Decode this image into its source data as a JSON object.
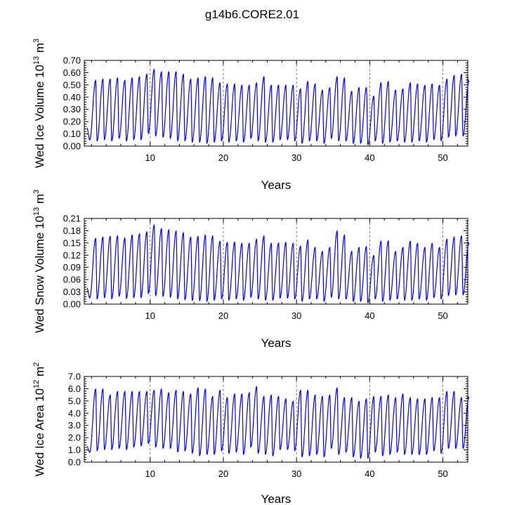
{
  "title": "g14b6.CORE2.01",
  "colors": {
    "line": "#0000ff",
    "axis": "#000000",
    "grid": "#555555"
  },
  "chart_data": [
    {
      "type": "line",
      "id": "ice-volume",
      "title": "",
      "xlabel": "Years",
      "ylabel_main": "Wed Ice Volume 10",
      "ylabel_sup": "13",
      "ylabel_unit": " m",
      "ylabel_unit_sup": "3",
      "xlim": [
        1,
        53.4
      ],
      "ylim": [
        0,
        0.7
      ],
      "xticks": [
        10,
        20,
        30,
        40,
        50
      ],
      "xtick_labels": [
        "10",
        "20",
        "30",
        "40",
        "50"
      ],
      "yticks": [
        0,
        0.1,
        0.2,
        0.3,
        0.4,
        0.5,
        0.6,
        0.7
      ],
      "ytick_labels": [
        "0.00",
        "0.10",
        "0.20",
        "0.30",
        "0.40",
        "0.50",
        "0.60",
        "0.70"
      ],
      "grid_x": [
        10,
        20,
        30,
        40,
        50
      ],
      "series": [
        {
          "name": "Wed Ice Volume",
          "year_start": 1.35,
          "start_value": 0.15,
          "end_value": 0.57,
          "peaks": [
            0.54,
            0.55,
            0.55,
            0.56,
            0.54,
            0.56,
            0.57,
            0.59,
            0.63,
            0.61,
            0.61,
            0.61,
            0.59,
            0.55,
            0.56,
            0.57,
            0.56,
            0.52,
            0.51,
            0.51,
            0.5,
            0.5,
            0.52,
            0.57,
            0.5,
            0.5,
            0.5,
            0.5,
            0.47,
            0.53,
            0.51,
            0.46,
            0.48,
            0.57,
            0.56,
            0.45,
            0.48,
            0.48,
            0.41,
            0.52,
            0.53,
            0.46,
            0.47,
            0.52,
            0.51,
            0.5,
            0.51,
            0.5,
            0.55,
            0.58,
            0.59,
            0.53
          ],
          "troughs": [
            0.05,
            0.04,
            0.05,
            0.04,
            0.06,
            0.04,
            0.05,
            0.05,
            0.1,
            0.08,
            0.07,
            0.06,
            0.04,
            0.04,
            0.03,
            0.03,
            0.02,
            0.03,
            0.04,
            0.03,
            0.04,
            0.03,
            0.06,
            0.04,
            0.03,
            0.03,
            0.05,
            0.05,
            0.04,
            0.02,
            0.04,
            0.04,
            0.02,
            0.06,
            0.04,
            0.04,
            0.02,
            0.02,
            0.01,
            0.04,
            0.02,
            0.03,
            0.04,
            0.03,
            0.03,
            0.04,
            0.03,
            0.05,
            0.04,
            0.07,
            0.08,
            0.08
          ]
        }
      ]
    },
    {
      "type": "line",
      "id": "snow-volume",
      "title": "",
      "xlabel": "Years",
      "ylabel_main": "Wed Snow Volume 10",
      "ylabel_sup": "13",
      "ylabel_unit": " m",
      "ylabel_unit_sup": "3",
      "xlim": [
        1,
        53.4
      ],
      "ylim": [
        0,
        0.21
      ],
      "xticks": [
        10,
        20,
        30,
        40,
        50
      ],
      "xtick_labels": [
        "10",
        "20",
        "30",
        "40",
        "50"
      ],
      "yticks": [
        0,
        0.03,
        0.06,
        0.09,
        0.12,
        0.15,
        0.18,
        0.21
      ],
      "ytick_labels": [
        "0.00",
        "0.03",
        "0.06",
        "0.09",
        "0.12",
        "0.15",
        "0.18",
        "0.21"
      ],
      "grid_x": [
        10,
        20,
        30,
        40,
        50
      ],
      "series": [
        {
          "name": "Wed Snow Volume",
          "year_start": 1.35,
          "start_value": 0.04,
          "end_value": 0.15,
          "peaks": [
            0.162,
            0.165,
            0.167,
            0.168,
            0.163,
            0.17,
            0.173,
            0.178,
            0.195,
            0.186,
            0.183,
            0.18,
            0.176,
            0.165,
            0.167,
            0.17,
            0.168,
            0.155,
            0.152,
            0.153,
            0.15,
            0.15,
            0.16,
            0.168,
            0.15,
            0.151,
            0.152,
            0.15,
            0.143,
            0.158,
            0.14,
            0.13,
            0.14,
            0.18,
            0.17,
            0.13,
            0.14,
            0.142,
            0.12,
            0.155,
            0.156,
            0.13,
            0.14,
            0.155,
            0.15,
            0.14,
            0.15,
            0.14,
            0.16,
            0.165,
            0.168,
            0.15
          ],
          "troughs": [
            0.015,
            0.012,
            0.015,
            0.012,
            0.018,
            0.013,
            0.015,
            0.015,
            0.025,
            0.02,
            0.018,
            0.016,
            0.012,
            0.01,
            0.008,
            0.008,
            0.006,
            0.009,
            0.012,
            0.009,
            0.012,
            0.009,
            0.016,
            0.012,
            0.009,
            0.009,
            0.014,
            0.014,
            0.012,
            0.006,
            0.012,
            0.012,
            0.006,
            0.016,
            0.012,
            0.012,
            0.006,
            0.006,
            0.003,
            0.012,
            0.006,
            0.009,
            0.012,
            0.009,
            0.009,
            0.012,
            0.009,
            0.015,
            0.012,
            0.02,
            0.022,
            0.022
          ]
        }
      ]
    },
    {
      "type": "line",
      "id": "ice-area",
      "title": "",
      "xlabel": "Years",
      "ylabel_main": "Wed Ice Area 10",
      "ylabel_sup": "12",
      "ylabel_unit": " m",
      "ylabel_unit_sup": "2",
      "xlim": [
        1,
        53.4
      ],
      "ylim": [
        0,
        7.0
      ],
      "xticks": [
        10,
        20,
        30,
        40,
        50
      ],
      "xtick_labels": [
        "10",
        "20",
        "30",
        "40",
        "50"
      ],
      "yticks": [
        0,
        1,
        2,
        3,
        4,
        5,
        6,
        7
      ],
      "ytick_labels": [
        "0.0",
        "1.0",
        "2.0",
        "3.0",
        "4.0",
        "5.0",
        "6.0",
        "7.0"
      ],
      "grid_x": [
        10,
        20,
        30,
        40,
        50
      ],
      "series": [
        {
          "name": "Wed Ice Area",
          "year_start": 1.35,
          "start_value": 1.3,
          "end_value": 5.3,
          "peaks": [
            6.0,
            6.0,
            5.5,
            5.8,
            5.8,
            5.8,
            5.8,
            5.8,
            5.9,
            6.0,
            5.7,
            5.9,
            5.8,
            5.6,
            6.1,
            6.0,
            5.4,
            5.9,
            5.3,
            5.6,
            5.6,
            5.7,
            6.2,
            5.4,
            5.5,
            5.4,
            5.2,
            5.0,
            5.9,
            5.9,
            5.5,
            5.4,
            5.5,
            6.1,
            5.3,
            5.3,
            5.0,
            5.2,
            5.4,
            5.4,
            5.5,
            5.3,
            5.6,
            5.3,
            5.2,
            5.2,
            5.3,
            5.3,
            5.8,
            5.8,
            5.3,
            5.3
          ],
          "troughs": [
            0.8,
            0.9,
            1.0,
            1.0,
            1.1,
            1.0,
            1.2,
            1.3,
            1.5,
            1.2,
            1.1,
            1.1,
            0.8,
            0.9,
            0.7,
            0.5,
            0.6,
            0.6,
            0.9,
            0.7,
            0.8,
            0.6,
            1.2,
            0.7,
            0.6,
            0.5,
            1.0,
            1.0,
            0.9,
            0.4,
            0.5,
            0.6,
            0.4,
            1.1,
            0.6,
            0.8,
            0.4,
            0.3,
            0.3,
            0.8,
            0.5,
            0.6,
            0.8,
            0.6,
            0.6,
            0.6,
            0.6,
            0.9,
            0.7,
            1.1,
            1.1,
            1.1
          ]
        }
      ]
    }
  ]
}
